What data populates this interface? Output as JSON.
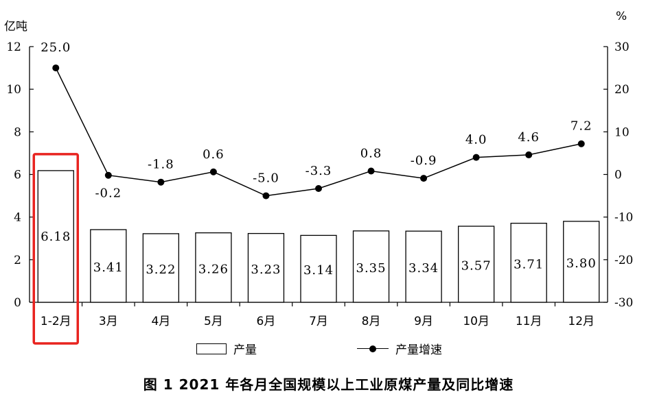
{
  "chart_data": {
    "type": "bar+line",
    "categories": [
      "1-2月",
      "3月",
      "4月",
      "5月",
      "6月",
      "7月",
      "8月",
      "9月",
      "10月",
      "11月",
      "12月"
    ],
    "series": [
      {
        "name": "产量",
        "type": "bar",
        "axis": "left",
        "values": [
          6.18,
          3.41,
          3.22,
          3.26,
          3.23,
          3.14,
          3.35,
          3.34,
          3.57,
          3.71,
          3.8
        ],
        "labels": [
          "6.18",
          "3.41",
          "3.22",
          "3.26",
          "3.23",
          "3.14",
          "3.35",
          "3.34",
          "3.57",
          "3.71",
          "3.80"
        ]
      },
      {
        "name": "产量增速",
        "type": "line",
        "axis": "right",
        "values": [
          25.0,
          -0.2,
          -1.8,
          0.6,
          -5.0,
          -3.3,
          0.8,
          -0.9,
          4.0,
          4.6,
          7.2
        ],
        "labels": [
          "25.0",
          "-0.2",
          "-1.8",
          "0.6",
          "-5.0",
          "-3.3",
          "0.8",
          "-0.9",
          "4.0",
          "4.6",
          "7.2"
        ]
      }
    ],
    "y_left": {
      "unit": "亿吨",
      "min": 0,
      "max": 12,
      "ticks": [
        0,
        2,
        4,
        6,
        8,
        10,
        12
      ]
    },
    "y_right": {
      "unit": "%",
      "min": -30,
      "max": 30,
      "ticks": [
        -30,
        -20,
        -10,
        0,
        10,
        20,
        30
      ]
    },
    "highlight": {
      "category_index": 0,
      "color": "#e8231f"
    },
    "title": "图 1   2021 年各月全国规模以上工业原煤产量及同比增速",
    "legend": [
      "产量",
      "产量增速"
    ]
  }
}
